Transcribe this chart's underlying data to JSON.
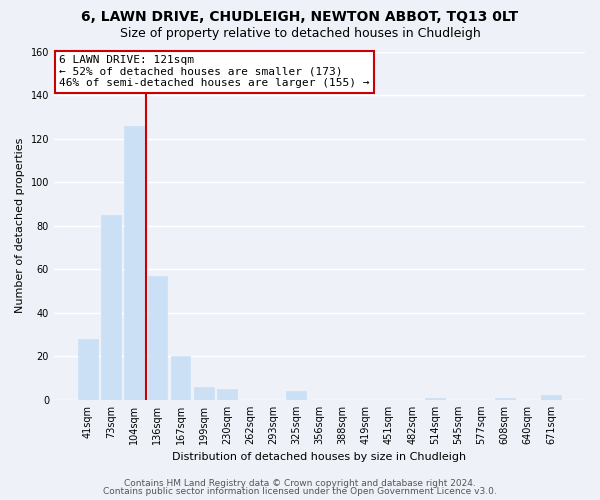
{
  "title": "6, LAWN DRIVE, CHUDLEIGH, NEWTON ABBOT, TQ13 0LT",
  "subtitle": "Size of property relative to detached houses in Chudleigh",
  "xlabel": "Distribution of detached houses by size in Chudleigh",
  "ylabel": "Number of detached properties",
  "bar_labels": [
    "41sqm",
    "73sqm",
    "104sqm",
    "136sqm",
    "167sqm",
    "199sqm",
    "230sqm",
    "262sqm",
    "293sqm",
    "325sqm",
    "356sqm",
    "388sqm",
    "419sqm",
    "451sqm",
    "482sqm",
    "514sqm",
    "545sqm",
    "577sqm",
    "608sqm",
    "640sqm",
    "671sqm"
  ],
  "bar_values": [
    28,
    85,
    126,
    57,
    20,
    6,
    5,
    0,
    0,
    4,
    0,
    0,
    0,
    0,
    0,
    1,
    0,
    0,
    1,
    0,
    2
  ],
  "bar_color": "#cce0f5",
  "vline_color": "#cc0000",
  "vline_x": 2.5,
  "annotation_text": "6 LAWN DRIVE: 121sqm\n← 52% of detached houses are smaller (173)\n46% of semi-detached houses are larger (155) →",
  "annotation_box_facecolor": "#ffffff",
  "annotation_box_edgecolor": "#cc0000",
  "ylim": [
    0,
    160
  ],
  "yticks": [
    0,
    20,
    40,
    60,
    80,
    100,
    120,
    140,
    160
  ],
  "footer1": "Contains HM Land Registry data © Crown copyright and database right 2024.",
  "footer2": "Contains public sector information licensed under the Open Government Licence v3.0.",
  "bg_color": "#eef2f8",
  "grid_color": "#ffffff",
  "title_fontsize": 10,
  "subtitle_fontsize": 9,
  "axis_label_fontsize": 8,
  "tick_fontsize": 7,
  "annotation_fontsize": 8,
  "footer_fontsize": 6.5
}
